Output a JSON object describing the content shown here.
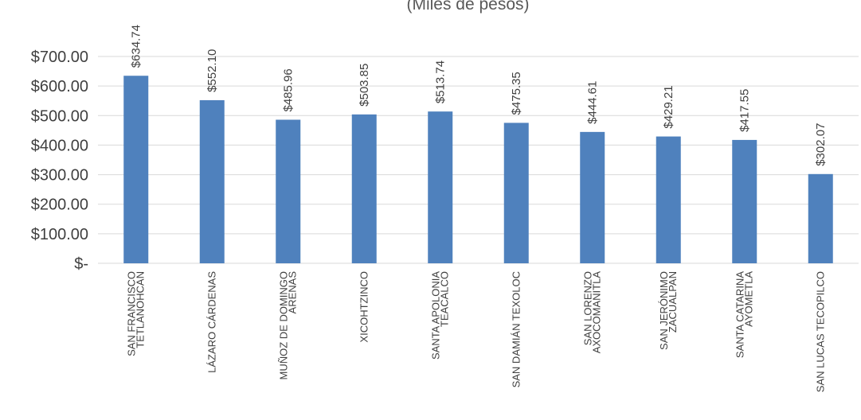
{
  "chart_data": {
    "type": "bar",
    "subtitle": "(Miles de pesos)",
    "categories": [
      [
        "SAN FRANCISCO",
        "TETLANOHCAN"
      ],
      [
        "LÁZARO CÁRDENAS"
      ],
      [
        "MUÑOZ DE DOMINGO",
        "ARENAS"
      ],
      [
        "XICOHTZINCO"
      ],
      [
        "SANTA APOLONIA",
        "TEACALCO"
      ],
      [
        "SAN DAMIÁN TEXOLOC"
      ],
      [
        "SAN LORENZO",
        "AXOCOMANITLA"
      ],
      [
        "SAN JERÓNIMO",
        "ZACUALPAN"
      ],
      [
        "SANTA CATARINA",
        "AYOMETLA"
      ],
      [
        "SAN LUCAS TECOPILCO"
      ]
    ],
    "values": [
      634.74,
      552.1,
      485.96,
      503.85,
      513.74,
      475.35,
      444.61,
      429.21,
      417.55,
      302.07
    ],
    "value_labels": [
      "$634.74",
      "$552.10",
      "$485.96",
      "$503.85",
      "$513.74",
      "$475.35",
      "$444.61",
      "$429.21",
      "$417.55",
      "$302.07"
    ],
    "ylim": [
      0,
      700
    ],
    "yticks": [
      0,
      100,
      200,
      300,
      400,
      500,
      600,
      700
    ],
    "ytick_labels": [
      "$-",
      "$100.00",
      "$200.00",
      "$300.00",
      "$400.00",
      "$500.00",
      "$600.00",
      "$700.00"
    ],
    "grid": true,
    "bar_color": "#4f81bd",
    "grid_color": "#d9d9d9"
  }
}
